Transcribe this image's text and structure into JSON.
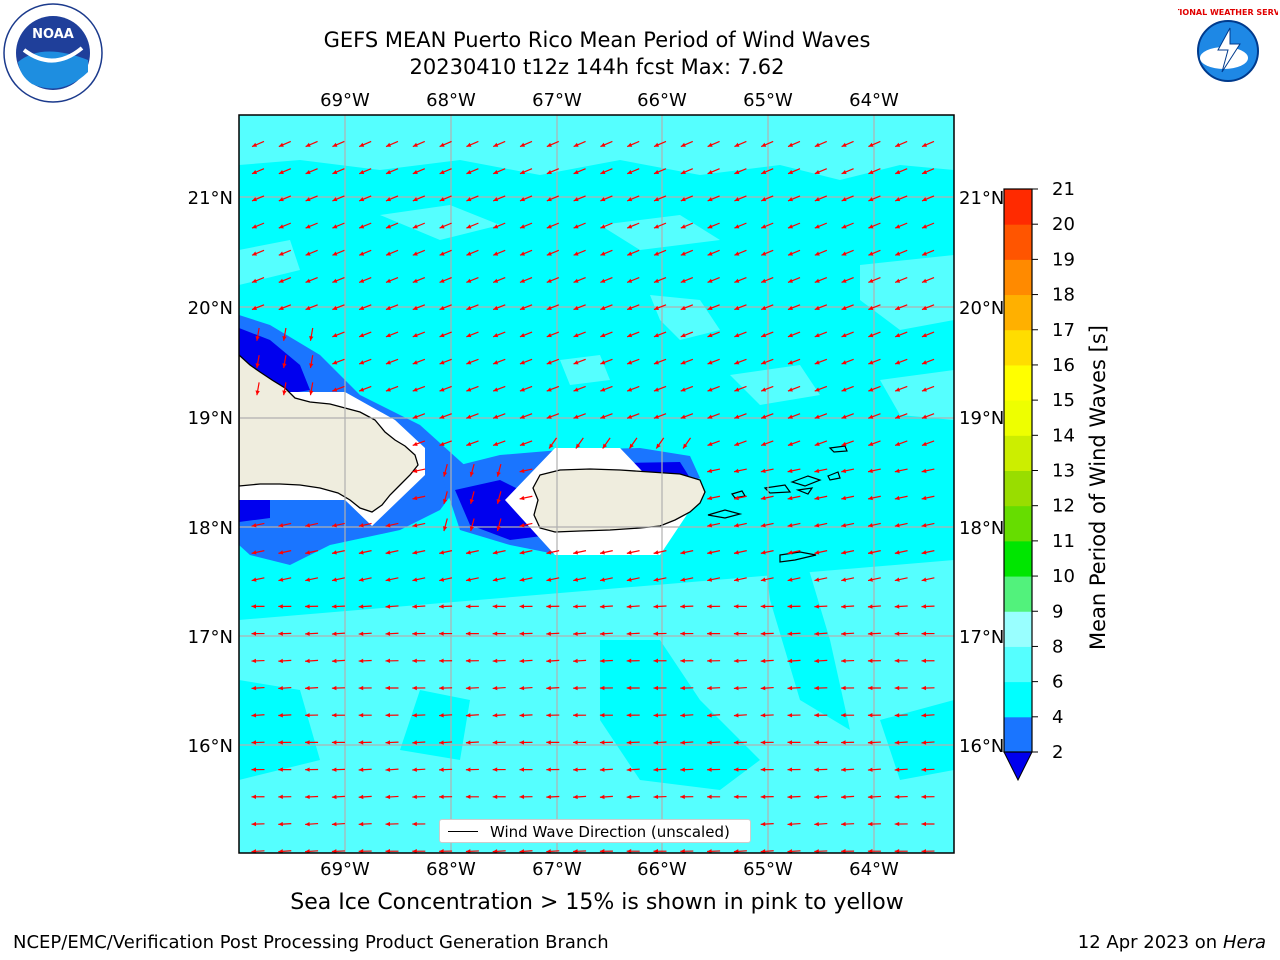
{
  "header": {
    "title_line1": "GEFS MEAN Puerto Rico Mean Period of Wind Waves",
    "title_line2": "20230410 t12z 144h fcst   Max: 7.62"
  },
  "logos": {
    "left": {
      "icon": "noaa-logo-icon",
      "text": "NOAA"
    },
    "right": {
      "icon": "nws-logo-icon",
      "text": "NATIONAL WEATHER SERVICE"
    }
  },
  "map": {
    "lon_labels": [
      "69°W",
      "68°W",
      "67°W",
      "66°W",
      "65°W",
      "64°W"
    ],
    "lat_labels": [
      "21°N",
      "20°N",
      "19°N",
      "18°N",
      "17°N",
      "16°N"
    ],
    "legend_label": "Wind Wave Direction (unscaled)",
    "arrow_color": "#ff0000",
    "land_color": "#efedde"
  },
  "colorbar": {
    "title": "Mean Period of Wind Waves [s]",
    "tick_labels": [
      "2",
      "4",
      "6",
      "8",
      "9",
      "10",
      "11",
      "12",
      "13",
      "14",
      "15",
      "16",
      "17",
      "18",
      "19",
      "20",
      "21"
    ],
    "colors": [
      "#1a75ff",
      "#00ffff",
      "#55ffff",
      "#99ffff",
      "#52f27c",
      "#00e600",
      "#66dd00",
      "#99dd00",
      "#ccee00",
      "#eeff00",
      "#ffff00",
      "#ffdd00",
      "#ffb000",
      "#ff8a00",
      "#ff5500",
      "#ff2a00",
      "#ff0000"
    ],
    "under_color": "#0000ee"
  },
  "subtitle": "Sea Ice Concentration > 15% is shown in pink to yellow",
  "footer": {
    "left": "NCEP/EMC/Verification Post Processing Product Generation Branch",
    "right_date": "12 Apr 2023 on ",
    "right_host": "Hera"
  }
}
